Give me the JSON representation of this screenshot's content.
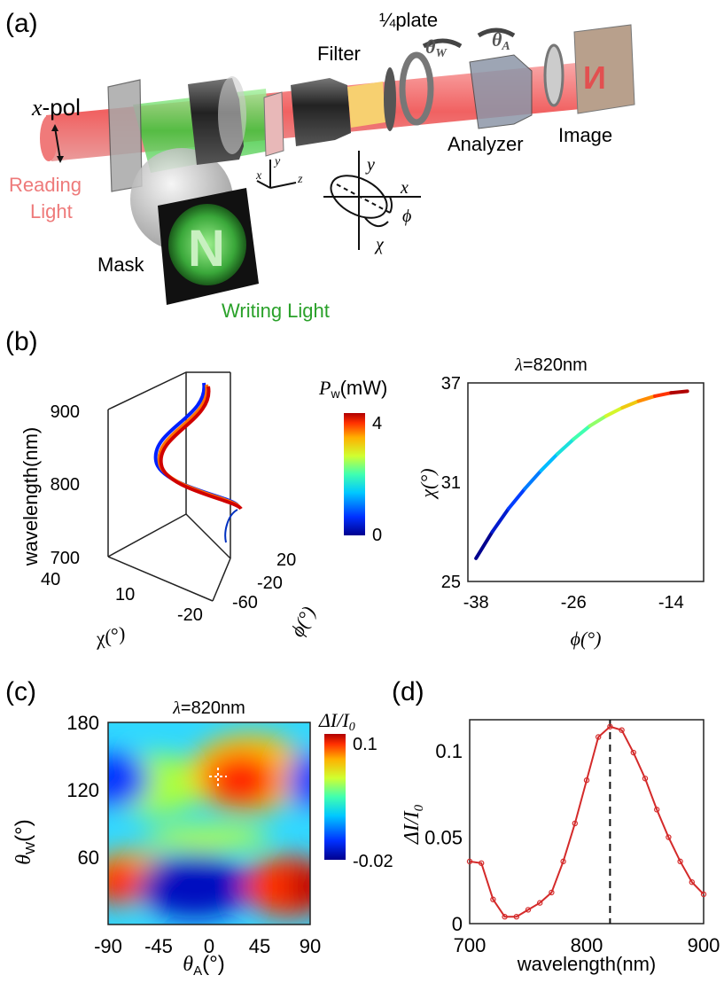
{
  "panel_a": {
    "label": "(a)",
    "xpol": "x",
    "xpol_suffix": "-pol",
    "reading_light_1": "Reading",
    "reading_light_2": "Light",
    "mask": "Mask",
    "writing_light": "Writing Light",
    "filter": "Filter",
    "quarter_plate": "¼plate",
    "theta_w": "θW",
    "theta_a": "θA",
    "analyzer": "Analyzer",
    "image": "Image",
    "axis_x": "x",
    "axis_y": "y",
    "axis_z": "z",
    "phi": "ϕ",
    "chi": "χ",
    "mask_letter": "N",
    "colors": {
      "reading": "#ee7a7a",
      "writing": "#2aa12a",
      "beam": "#ef5a5a"
    }
  },
  "panel_b": {
    "label": "(b)",
    "colorbar_title": "Pw(mW)",
    "colorbar_max": "4",
    "colorbar_min": "0"
  },
  "panel_c": {
    "label": "(c)",
    "title": "λ=820nm",
    "colorbar_title": "ΔI/I0",
    "colorbar_max": "0.1",
    "colorbar_min": "-0.02"
  },
  "panel_d": {
    "label": "(d)"
  },
  "chart_data": [
    {
      "type": "line",
      "panel": "b-left",
      "xlabel": "χ(°)",
      "ylabel": "wavelength(nm)",
      "zlabel": "ϕ(°)",
      "y_ticks": [
        "700",
        "800",
        "900"
      ],
      "x_ticks": [
        "40",
        "10",
        "-20"
      ],
      "z_ticks": [
        "20",
        "-20",
        "-60"
      ],
      "colorbar": {
        "label": "Pw(mW)",
        "min": 0,
        "max": 4
      }
    },
    {
      "type": "line",
      "panel": "b-right",
      "title": "λ=820nm",
      "xlabel": "ϕ(°)",
      "ylabel": "χ(°)",
      "x_ticks": [
        -38,
        -26,
        -14
      ],
      "y_ticks": [
        25,
        31,
        37
      ],
      "xlim": [
        -39,
        -10
      ],
      "ylim": [
        25,
        37
      ],
      "x": [
        -38,
        -36,
        -34,
        -32,
        -30,
        -28,
        -26,
        -24,
        -22,
        -20,
        -18,
        -16,
        -14,
        -12
      ],
      "y": [
        26.4,
        28.0,
        29.4,
        30.6,
        31.7,
        32.7,
        33.6,
        34.4,
        35.0,
        35.5,
        35.9,
        36.2,
        36.4,
        36.5
      ]
    },
    {
      "type": "heatmap",
      "panel": "c",
      "title": "λ=820nm",
      "xlabel": "θA(°)",
      "ylabel": "θW(°)",
      "x_ticks": [
        -90,
        -45,
        0,
        45,
        90
      ],
      "y_ticks": [
        60,
        120,
        180
      ],
      "xlim": [
        -90,
        90
      ],
      "ylim": [
        0,
        180
      ],
      "colorbar": {
        "label": "ΔI/I0",
        "min": -0.02,
        "max": 0.1
      },
      "marker": {
        "x": 10,
        "y": 120
      }
    },
    {
      "type": "line",
      "panel": "d",
      "xlabel": "wavelength(nm)",
      "ylabel": "ΔI/I0",
      "x_ticks": [
        700,
        800,
        900
      ],
      "y_ticks": [
        0,
        0.05,
        0.1
      ],
      "xlim": [
        700,
        900
      ],
      "ylim": [
        0,
        0.118
      ],
      "x": [
        700,
        710,
        720,
        730,
        740,
        750,
        760,
        770,
        780,
        790,
        800,
        810,
        820,
        830,
        840,
        850,
        860,
        870,
        880,
        890,
        900
      ],
      "y": [
        0.036,
        0.035,
        0.014,
        0.004,
        0.004,
        0.008,
        0.012,
        0.018,
        0.036,
        0.058,
        0.083,
        0.108,
        0.114,
        0.112,
        0.099,
        0.084,
        0.066,
        0.05,
        0.036,
        0.024,
        0.017
      ],
      "vline": 820
    }
  ]
}
